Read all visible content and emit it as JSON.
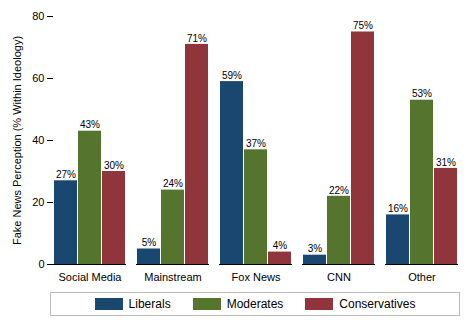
{
  "chart_data": {
    "type": "bar",
    "y_label": "Fake News Perception (% Within Ideology)",
    "categories": [
      "Social Media",
      "Mainstream",
      "Fox News",
      "CNN",
      "Other"
    ],
    "series": [
      {
        "name": "Liberals",
        "color": "#1a476f",
        "values": [
          27,
          5,
          59,
          3,
          16
        ],
        "value_labels": [
          "27%",
          "5%",
          "59%",
          "3%",
          "16%"
        ]
      },
      {
        "name": "Moderates",
        "color": "#55752f",
        "values": [
          43,
          24,
          37,
          22,
          53
        ],
        "value_labels": [
          "43%",
          "24%",
          "37%",
          "22%",
          "53%"
        ]
      },
      {
        "name": "Conservatives",
        "color": "#90353b",
        "values": [
          30,
          71,
          4,
          75,
          31
        ],
        "value_labels": [
          "30%",
          "71%",
          "4%",
          "75%",
          "31%"
        ]
      }
    ],
    "ylim": [
      0,
      80
    ],
    "yticks": [
      0,
      20,
      40,
      60,
      80
    ],
    "grid": false,
    "data_labels": true,
    "legend": "bottom"
  }
}
